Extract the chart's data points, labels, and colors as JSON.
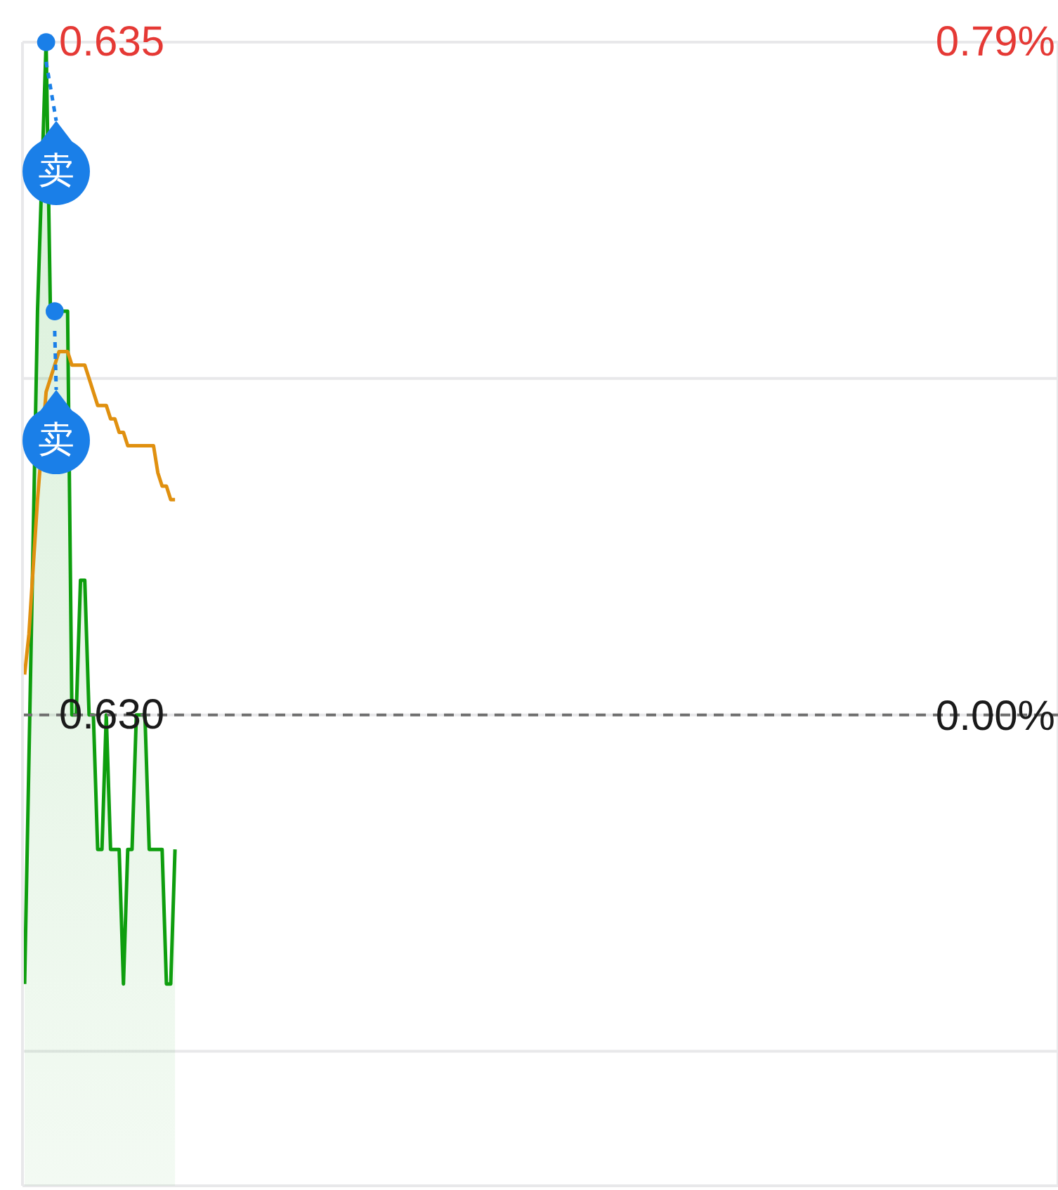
{
  "chart_data": {
    "type": "line",
    "categories": [
      null,
      null,
      null,
      null,
      null,
      null,
      null,
      null,
      null,
      null,
      null,
      null,
      null,
      null,
      null,
      null,
      null,
      null,
      null,
      null,
      null,
      null,
      null,
      null,
      null,
      null,
      null,
      null,
      null,
      null,
      null,
      null,
      null,
      null,
      null,
      null,
      null,
      null,
      null,
      null,
      null,
      null,
      null,
      null,
      null,
      null,
      null,
      null,
      null,
      null,
      null,
      null,
      null,
      null,
      null,
      null,
      null,
      null,
      null,
      null,
      null,
      null,
      null,
      null,
      null,
      null,
      null,
      null,
      null,
      null,
      null,
      null,
      null,
      null,
      null,
      null,
      null,
      null,
      null,
      null,
      null,
      null,
      null,
      null,
      null,
      null,
      null,
      null,
      null,
      null,
      null,
      null,
      null,
      null,
      null,
      null,
      null,
      null,
      null,
      null,
      null,
      null,
      null,
      null,
      null,
      null,
      null,
      null,
      null,
      null,
      null,
      null,
      null,
      null,
      null,
      null,
      null,
      null,
      null,
      null,
      null,
      null,
      null,
      null,
      null,
      null,
      null,
      null,
      null,
      null,
      null,
      null,
      null,
      null,
      null,
      null,
      null,
      null,
      null,
      null,
      null,
      null,
      null,
      null,
      null,
      null,
      null,
      null,
      null,
      null,
      null,
      null,
      null,
      null,
      null,
      null,
      null,
      null,
      null,
      null,
      null,
      null,
      null,
      null,
      null,
      null,
      null,
      null,
      null,
      null,
      null,
      null,
      null,
      null,
      null,
      null,
      null,
      null,
      null,
      null,
      null,
      null,
      null,
      null,
      null,
      null,
      null,
      null,
      null,
      null,
      null,
      null,
      null,
      null,
      null,
      null,
      null,
      null,
      null,
      null,
      null,
      null,
      null,
      null,
      null,
      null,
      null,
      null,
      null,
      null,
      null,
      null,
      null,
      null,
      null,
      null,
      null,
      null,
      null,
      null,
      null,
      null,
      null,
      null,
      null,
      null,
      null,
      null,
      null,
      null,
      null,
      null,
      null,
      null,
      null,
      null,
      null,
      null,
      null,
      null,
      null
    ],
    "series": [
      {
        "type": "area",
        "color": "#0e9e0e",
        "values": [
          0.628,
          null,
          null,
          0.633,
          null,
          0.635,
          0.633,
          0.633,
          null,
          0.633,
          0.633,
          0.63,
          0.63,
          0.631,
          0.631,
          0.63,
          0.63,
          0.629,
          0.629,
          0.63,
          0.629,
          0.629,
          0.629,
          0.628,
          0.629,
          0.629,
          0.63,
          0.63,
          0.63,
          0.629,
          0.629,
          0.629,
          0.629,
          0.628,
          0.628,
          0.629,
          null,
          null,
          null,
          null,
          null,
          null,
          null,
          null,
          null,
          null,
          null,
          null,
          null,
          null,
          null,
          null,
          null,
          null,
          null,
          null,
          null,
          null,
          null,
          null,
          null,
          null,
          null,
          null,
          null,
          null,
          null,
          null,
          null,
          null,
          null,
          null,
          null,
          null,
          null,
          null,
          null,
          null,
          null,
          null,
          null,
          null,
          null,
          null,
          null,
          null,
          null,
          null,
          null,
          null,
          null,
          null,
          null,
          null,
          null,
          null,
          null,
          null,
          null,
          null,
          null,
          null,
          null,
          null,
          null,
          null,
          null,
          null,
          null,
          null,
          null,
          null,
          null,
          null,
          null,
          null,
          null,
          null,
          null,
          null,
          null,
          null,
          null,
          null,
          null,
          null,
          null,
          null,
          null,
          null,
          null,
          null,
          null,
          null,
          null,
          null,
          null,
          null,
          null,
          null,
          null,
          null,
          null,
          null,
          null,
          null,
          null,
          null,
          null,
          null,
          null,
          null,
          null,
          null,
          null,
          null,
          null,
          null,
          null,
          null,
          null,
          null,
          null,
          null,
          null,
          null,
          null,
          null,
          null,
          null,
          null,
          null,
          null,
          null,
          null,
          null,
          null,
          null,
          null,
          null,
          null,
          null,
          null,
          null,
          null,
          null,
          null,
          null,
          null,
          null,
          null,
          null,
          null,
          null,
          null,
          null,
          null,
          null,
          null,
          null,
          null,
          null,
          null,
          null,
          null,
          null,
          null,
          null,
          null,
          null,
          null,
          null,
          null,
          null,
          null,
          null,
          null,
          null,
          null,
          null,
          null,
          null,
          null,
          null,
          null,
          null,
          null,
          null,
          null,
          null,
          null,
          null,
          null,
          null,
          null,
          null,
          null,
          null,
          null,
          null,
          null
        ]
      },
      {
        "color": "#e0900f",
        "values": [
          0.6303,
          0.6306,
          0.6311,
          0.6316,
          null,
          0.6324,
          0.6325,
          0.6326,
          0.6327,
          0.6327,
          0.6327,
          0.6326,
          0.6326,
          0.6326,
          0.6326,
          0.6325,
          0.6324,
          0.6323,
          0.6323,
          0.6323,
          0.6322,
          0.6322,
          0.6321,
          0.6321,
          0.632,
          0.632,
          0.632,
          0.632,
          0.632,
          0.632,
          0.632,
          0.6318,
          0.6317,
          0.6317,
          0.6316,
          0.6316,
          null,
          null,
          null,
          null,
          null,
          null,
          null,
          null,
          null,
          null,
          null,
          null,
          null,
          null,
          null,
          null,
          null,
          null,
          null,
          null,
          null,
          null,
          null,
          null,
          null,
          null,
          null,
          null,
          null,
          null,
          null,
          null,
          null,
          null,
          null,
          null,
          null,
          null,
          null,
          null,
          null,
          null,
          null,
          null,
          null,
          null,
          null,
          null,
          null,
          null,
          null,
          null,
          null,
          null,
          null,
          null,
          null,
          null,
          null,
          null,
          null,
          null,
          null,
          null,
          null,
          null,
          null,
          null,
          null,
          null,
          null,
          null,
          null,
          null,
          null,
          null,
          null,
          null,
          null,
          null,
          null,
          null,
          null,
          null,
          null,
          null,
          null,
          null,
          null,
          null,
          null,
          null,
          null,
          null,
          null,
          null,
          null,
          null,
          null,
          null,
          null,
          null,
          null,
          null,
          null,
          null,
          null,
          null,
          null,
          null,
          null,
          null,
          null,
          null,
          null,
          null,
          null,
          null,
          null,
          null,
          null,
          null,
          null,
          null,
          null,
          null,
          null,
          null,
          null,
          null,
          null,
          null,
          null,
          null,
          null,
          null,
          null,
          null,
          null,
          null,
          null,
          null,
          null,
          null,
          null,
          null,
          null,
          null,
          null,
          null,
          null,
          null,
          null,
          null,
          null,
          null,
          null,
          null,
          null,
          null,
          null,
          null,
          null,
          null,
          null,
          null,
          null,
          null,
          null,
          null,
          null,
          null,
          null,
          null,
          null,
          null,
          null,
          null,
          null,
          null,
          null,
          null,
          null,
          null,
          null,
          null,
          null,
          null,
          null,
          null,
          null,
          null,
          null,
          null,
          null,
          null,
          null,
          null,
          null,
          null,
          null,
          null,
          null,
          null,
          null
        ]
      },
      {
        "type": "scatter",
        "color": "#1a7fe8",
        "marker": "circle",
        "values": [
          null,
          null,
          null,
          null,
          null,
          0.635,
          null,
          0.633,
          null,
          null,
          null,
          null,
          null,
          null,
          null,
          null,
          null,
          null,
          null,
          null,
          null,
          null,
          null,
          null,
          null,
          null,
          null,
          null,
          null,
          null,
          null,
          null,
          null,
          null,
          null,
          null,
          null,
          null,
          null,
          null,
          null,
          null,
          null,
          null,
          null,
          null,
          null,
          null,
          null,
          null,
          null,
          null,
          null,
          null,
          null,
          null,
          null,
          null,
          null,
          null,
          null,
          null,
          null,
          null,
          null,
          null,
          null,
          null,
          null,
          null,
          null,
          null,
          null,
          null,
          null,
          null,
          null,
          null,
          null,
          null,
          null,
          null,
          null,
          null,
          null,
          null,
          null,
          null,
          null,
          null,
          null,
          null,
          null,
          null,
          null,
          null,
          null,
          null,
          null,
          null,
          null,
          null,
          null,
          null,
          null,
          null,
          null,
          null,
          null,
          null,
          null,
          null,
          null,
          null,
          null,
          null,
          null,
          null,
          null,
          null,
          null,
          null,
          null,
          null,
          null,
          null,
          null,
          null,
          null,
          null,
          null,
          null,
          null,
          null,
          null,
          null,
          null,
          null,
          null,
          null,
          null,
          null,
          null,
          null,
          null,
          null,
          null,
          null,
          null,
          null,
          null,
          null,
          null,
          null,
          null,
          null,
          null,
          null,
          null,
          null,
          null,
          null,
          null,
          null,
          null,
          null,
          null,
          null,
          null,
          null,
          null,
          null,
          null,
          null,
          null,
          null,
          null,
          null,
          null,
          null,
          null,
          null,
          null,
          null,
          null,
          null,
          null,
          null,
          null,
          null,
          null,
          null,
          null,
          null,
          null,
          null,
          null,
          null,
          null,
          null,
          null,
          null,
          null,
          null,
          null,
          null,
          null,
          null,
          null,
          null,
          null,
          null,
          null,
          null,
          null,
          null,
          null,
          null,
          null,
          null,
          null,
          null,
          null,
          null,
          null,
          null,
          null,
          null,
          null,
          null,
          null,
          null,
          null,
          null,
          null,
          null,
          null,
          null,
          null,
          null,
          null
        ]
      }
    ],
    "ylim": [
      0.6265,
      0.635
    ],
    "yticks": [
      0.635,
      {
        "value": 0.6325,
        "label": null
      },
      {
        "value": 0.63,
        "label": "0.630"
      },
      {
        "value": 0.6275,
        "label": null
      }
    ],
    "y2lim": [
      -0.55,
      0.79
    ],
    "y2ticks": [
      {
        "value": 0.79,
        "label": "0.79%"
      },
      {
        "value": 0,
        "label": "0.00%"
      }
    ],
    "ref_lines": [
      {
        "axis": "y",
        "value": 0.63,
        "color": "#707070",
        "line_style": "dashed"
      }
    ],
    "annotations": [
      "卖",
      "卖"
    ],
    "grid": true,
    "tick_labels": "y"
  }
}
